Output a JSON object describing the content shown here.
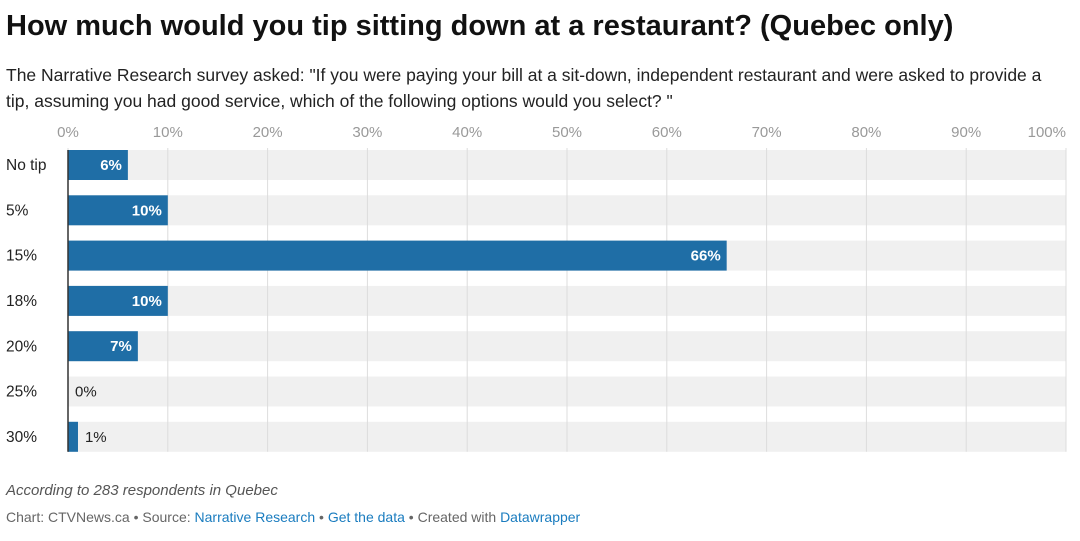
{
  "chart_data": {
    "type": "bar",
    "orientation": "horizontal",
    "title": "How much would you tip sitting down at a restaurant? (Quebec only)",
    "subtitle": "The Narrative Research survey asked: \"If you were paying your bill at a sit-down, independent restaurant and were asked to provide a tip, assuming you had good service, which of the following options would you select? \"",
    "categories": [
      "No tip",
      "5%",
      "15%",
      "18%",
      "20%",
      "25%",
      "30%"
    ],
    "values": [
      6,
      10,
      66,
      10,
      7,
      0,
      1
    ],
    "value_labels": [
      "6%",
      "10%",
      "66%",
      "10%",
      "7%",
      "0%",
      "1%"
    ],
    "color": "#1f6ea6",
    "xlim": [
      0,
      100
    ],
    "xticks": [
      {
        "value": 0,
        "label": "0%"
      },
      {
        "value": 10,
        "label": "10%"
      },
      {
        "value": 20,
        "label": "20%"
      },
      {
        "value": 30,
        "label": "30%"
      },
      {
        "value": 40,
        "label": "40%"
      },
      {
        "value": 50,
        "label": "50%"
      },
      {
        "value": 60,
        "label": "60%"
      },
      {
        "value": 70,
        "label": "70%"
      },
      {
        "value": 80,
        "label": "80%"
      },
      {
        "value": 90,
        "label": "90%"
      },
      {
        "value": 100,
        "label": "100%"
      }
    ],
    "grid": true,
    "note": "According to 283 respondents in Quebec",
    "footer": {
      "chart_credit": "Chart: CTVNews.ca",
      "separator": "•",
      "source_label": "Source:",
      "source": "Narrative Research",
      "get_data": "Get the data",
      "created_with": "Created with",
      "tool": "Datawrapper"
    }
  }
}
